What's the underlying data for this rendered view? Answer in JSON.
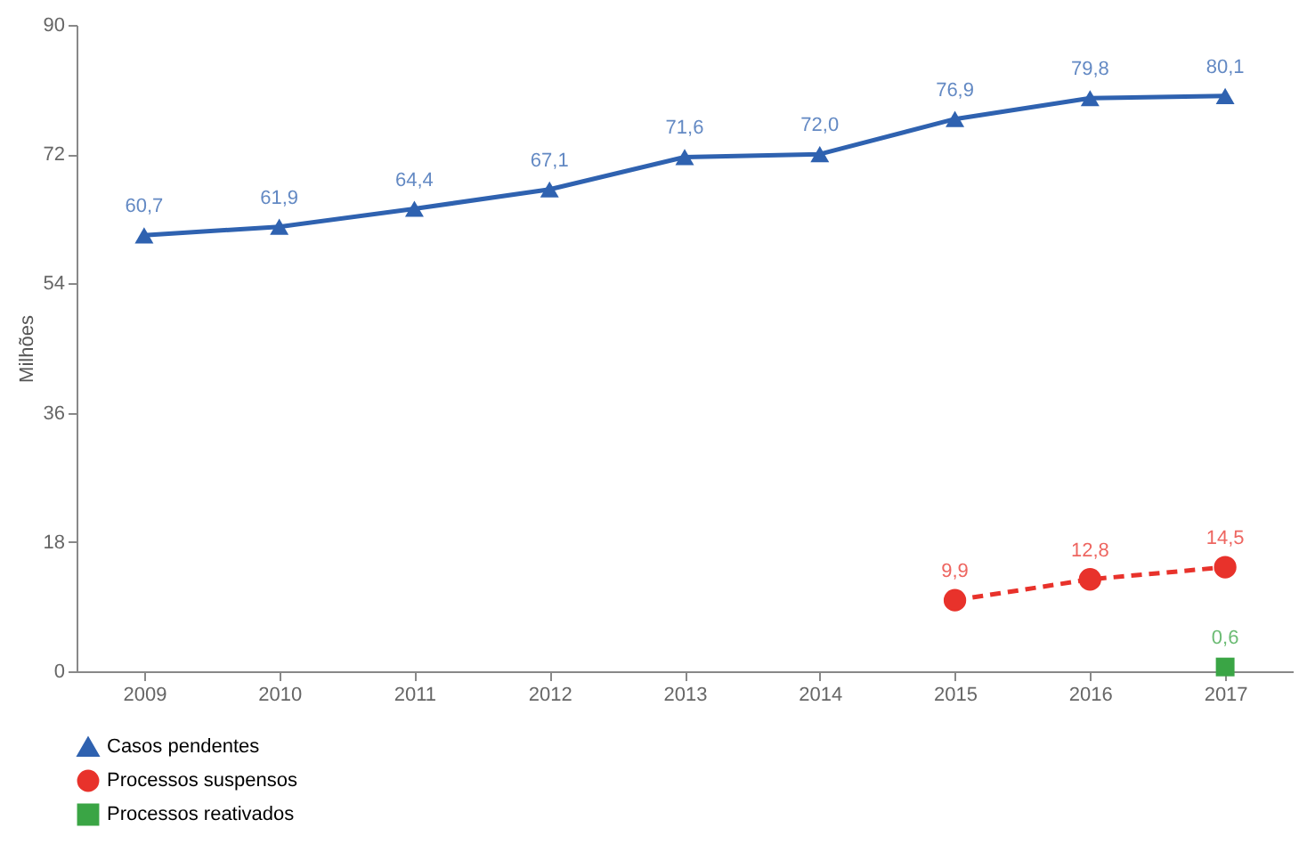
{
  "chart_data": {
    "type": "line",
    "ylabel": "Milhões",
    "categories": [
      "2009",
      "2010",
      "2011",
      "2012",
      "2013",
      "2014",
      "2015",
      "2016",
      "2017"
    ],
    "ylim": [
      0,
      90
    ],
    "yticks": [
      0,
      18,
      36,
      54,
      72,
      90
    ],
    "grid": false,
    "legend": "bottom",
    "series": [
      {
        "name": "Casos pendentes",
        "color": "#2f62b0",
        "marker": "triangle",
        "line_style": "solid",
        "values": [
          60.7,
          61.9,
          64.4,
          67.1,
          71.6,
          72.0,
          76.9,
          79.8,
          80.1
        ],
        "value_labels": [
          "60,7",
          "61,9",
          "64,4",
          "67,1",
          "71,6",
          "72,0",
          "76,9",
          "79,8",
          "80,1"
        ]
      },
      {
        "name": "Processos suspensos",
        "color": "#e8322b",
        "marker": "circle",
        "line_style": "dashed",
        "values": [
          null,
          null,
          null,
          null,
          null,
          null,
          9.9,
          12.8,
          14.5
        ],
        "value_labels": [
          null,
          null,
          null,
          null,
          null,
          null,
          "9,9",
          "12,8",
          "14,5"
        ]
      },
      {
        "name": "Processos reativados",
        "color": "#3aa545",
        "marker": "square",
        "values": [
          null,
          null,
          null,
          null,
          null,
          null,
          null,
          null,
          0.6
        ],
        "value_labels": [
          null,
          null,
          null,
          null,
          null,
          null,
          null,
          null,
          "0,6"
        ]
      }
    ]
  }
}
